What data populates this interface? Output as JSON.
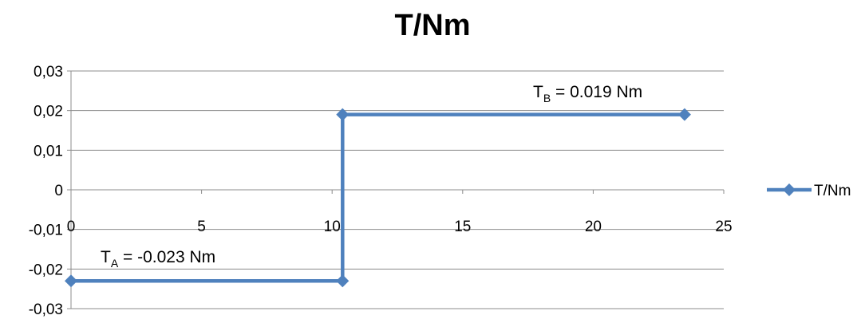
{
  "chart_data": {
    "type": "scatter",
    "title": "T/Nm",
    "xlabel": "",
    "ylabel": "",
    "xlim": [
      0,
      25
    ],
    "ylim": [
      -0.03,
      0.03
    ],
    "x_ticks": [
      0,
      5,
      10,
      15,
      20,
      25
    ],
    "x_tick_labels": [
      "0",
      "5",
      "10",
      "15",
      "20",
      "25"
    ],
    "y_ticks": [
      0.03,
      0.02,
      0.01,
      0,
      -0.01,
      -0.02,
      -0.03
    ],
    "y_tick_labels": [
      "0,03",
      "0,02",
      "0,01",
      "0",
      "-0,01",
      "-0,02",
      "-0,03"
    ],
    "grid": "horizontal",
    "legend_position": "right",
    "series": [
      {
        "name": "T/Nm",
        "color": "#4F81BD",
        "marker": "diamond",
        "x": [
          0,
          10.4,
          10.4,
          23.5
        ],
        "y": [
          -0.023,
          -0.023,
          0.019,
          0.019
        ]
      }
    ],
    "annotations": [
      {
        "main": "T",
        "sub": "A",
        "rest": " = -0.023 Nm"
      },
      {
        "main": "T",
        "sub": "B",
        "rest": " = 0.019 Nm"
      }
    ]
  }
}
